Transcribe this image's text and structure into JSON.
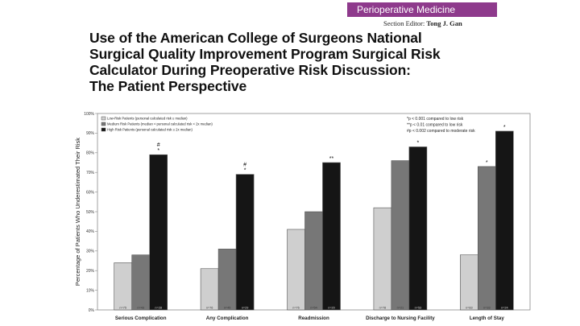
{
  "header": {
    "section": "Perioperative Medicine",
    "editor_label": "Section Editor:",
    "editor_name": "Tong J. Gan",
    "title_lines": [
      "Use of the American College of Surgeons National",
      "Surgical Quality Improvement Program Surgical Risk",
      "Calculator During Preoperative Risk Discussion:",
      "The Patient Perspective"
    ]
  },
  "chart_data": {
    "type": "bar",
    "ylabel": "Percentage of Patients Who Underestimated Their Risk",
    "xlabel": "",
    "ylim": [
      0,
      100
    ],
    "yticks": [
      "0%",
      "10%",
      "20%",
      "30%",
      "40%",
      "50%",
      "60%",
      "70%",
      "80%",
      "90%",
      "100%"
    ],
    "grid": false,
    "legend_position": "top-left",
    "categories": [
      "Serious Complication",
      "Any Complication",
      "Readmission",
      "Discharge to Nursing Facility",
      "Length of Stay"
    ],
    "series": [
      {
        "name": "Low-Risk Patients (personal calculated risk ≤ median)",
        "color": "#cfcfcf",
        "values": [
          24,
          21,
          41,
          52,
          28
        ],
        "n_labels": [
          "n=75",
          "n=76",
          "n=76",
          "n=78",
          "n=83"
        ]
      },
      {
        "name": "Medium Risk Patients (median < personal calculated risk < 2x median)",
        "color": "#777777",
        "values": [
          28,
          31,
          50,
          76,
          73
        ],
        "n_labels": [
          "n=43",
          "n=45",
          "n=54",
          "n=21",
          "n=33"
        ]
      },
      {
        "name": "High Risk Patients (personal calculated risk ≥ 2x median)",
        "color": "#151515",
        "values": [
          79,
          69,
          75,
          83,
          91
        ],
        "n_labels": [
          "n=28",
          "n=29",
          "n=20",
          "n=53",
          "n=24"
        ]
      }
    ],
    "significance_marks": [
      {
        "category": 0,
        "series": 2,
        "text": "#\n*"
      },
      {
        "category": 1,
        "series": 2,
        "text": "#\n*"
      },
      {
        "category": 2,
        "series": 2,
        "text": "**"
      },
      {
        "category": 3,
        "series": 2,
        "text": "*"
      },
      {
        "category": 4,
        "series": 1,
        "text": "*"
      },
      {
        "category": 4,
        "series": 2,
        "text": "*"
      }
    ],
    "annotations": [
      "*p < 0.001 compared to low risk",
      "**p < 0.01 compared to low risk",
      "#p < 0.002 compared to moderate risk"
    ]
  }
}
